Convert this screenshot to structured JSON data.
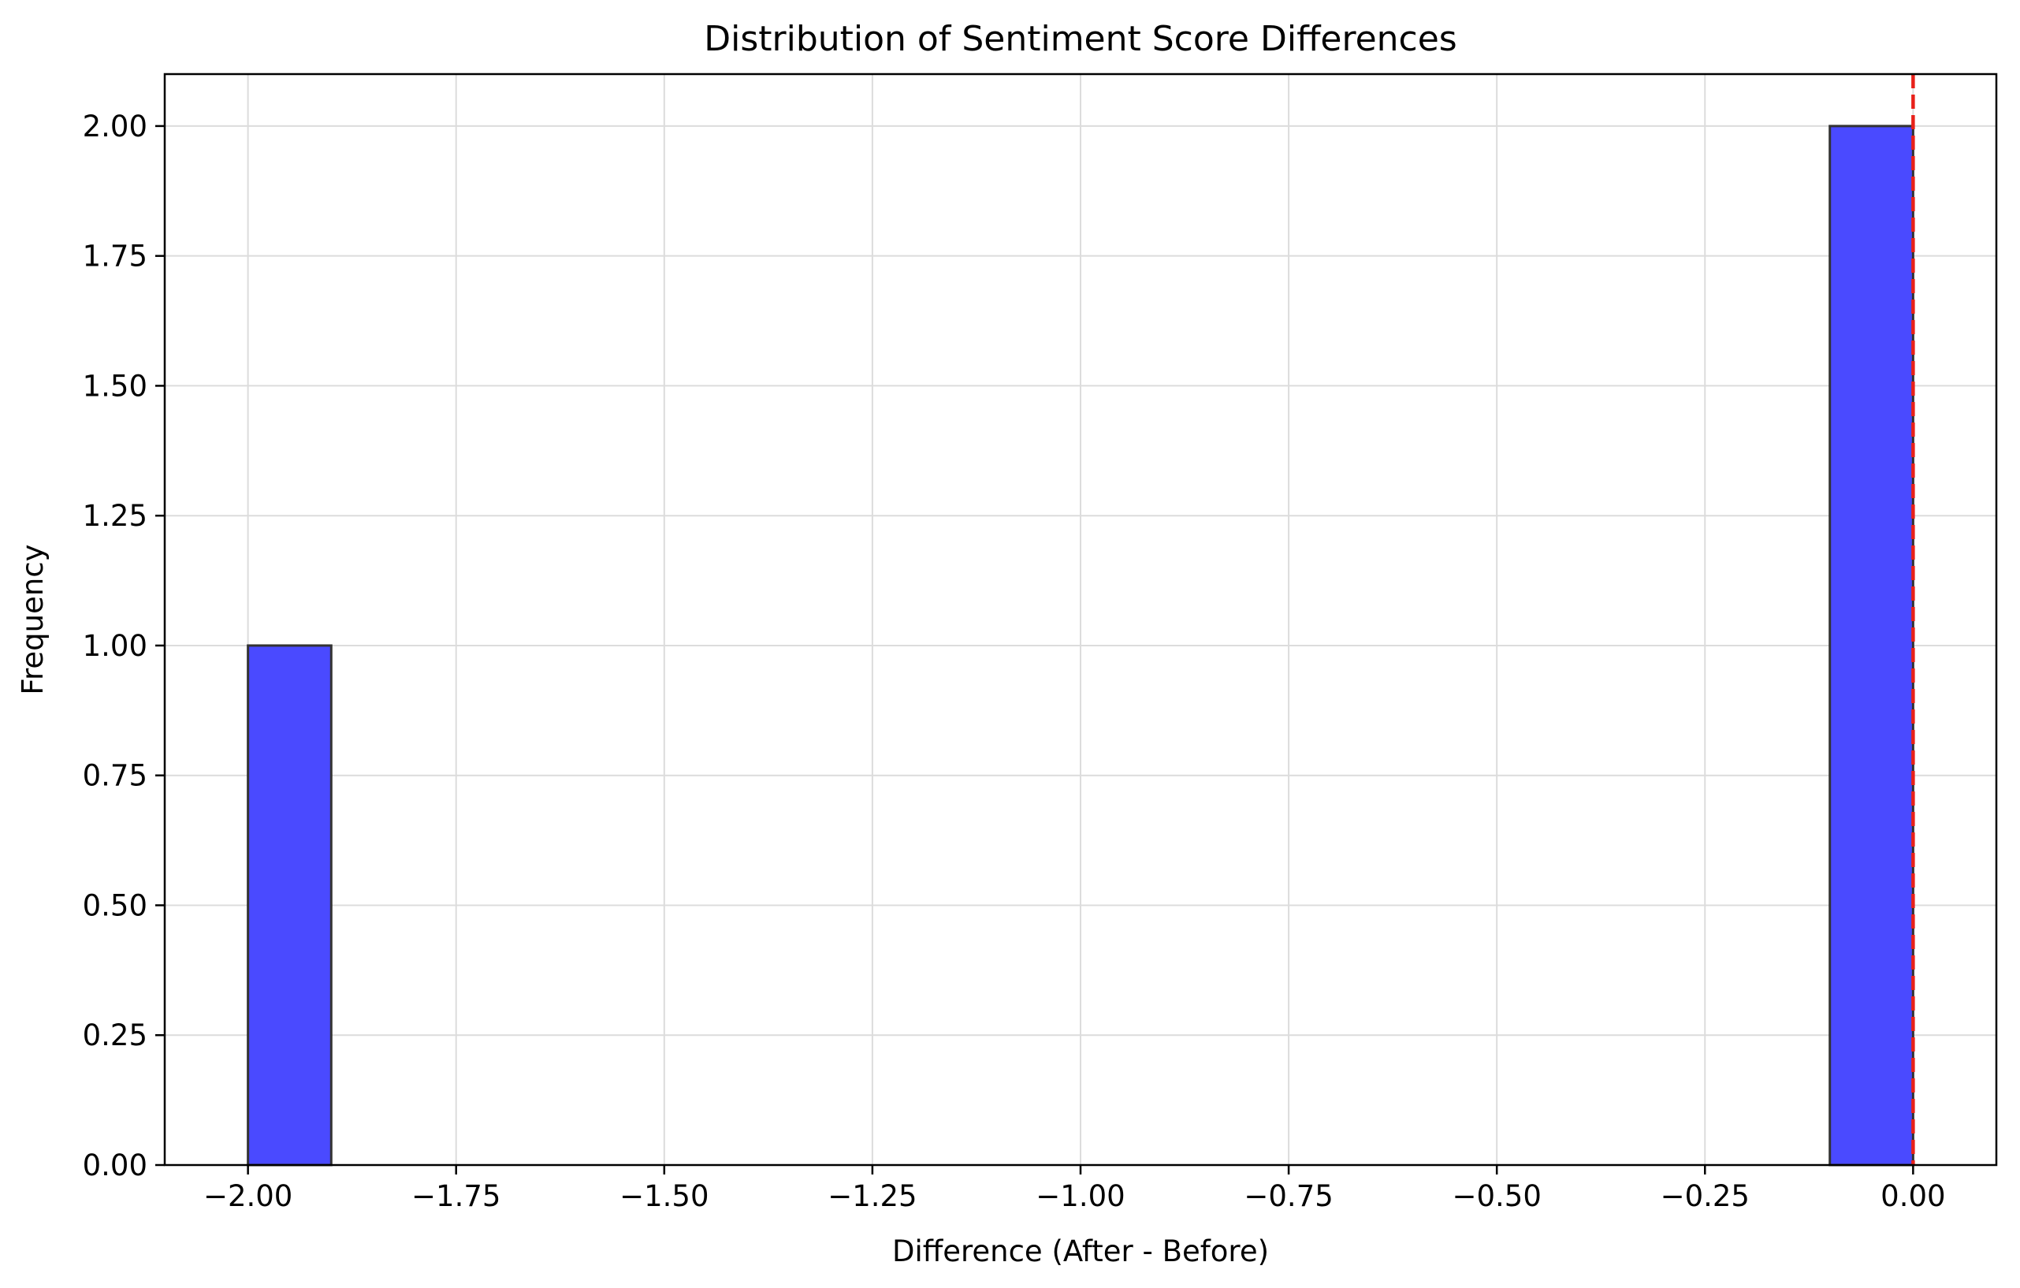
{
  "chart_data": {
    "type": "bar",
    "title": "Distribution of Sentiment Score Differences",
    "xlabel": "Difference (After - Before)",
    "ylabel": "Frequency",
    "xlim": [
      -2.1,
      0.1
    ],
    "ylim": [
      0,
      2.1
    ],
    "x_ticks": [
      -2.0,
      -1.75,
      -1.5,
      -1.25,
      -1.0,
      -0.75,
      -0.5,
      -0.25,
      0.0
    ],
    "x_tick_labels": [
      "−2.00",
      "−1.75",
      "−1.50",
      "−1.25",
      "−1.00",
      "−0.75",
      "−0.50",
      "−0.25",
      "0.00"
    ],
    "y_ticks": [
      0,
      0.25,
      0.5,
      0.75,
      1.0,
      1.25,
      1.5,
      1.75,
      2.0
    ],
    "y_tick_labels": [
      "0.00",
      "0.25",
      "0.50",
      "0.75",
      "1.00",
      "1.25",
      "1.50",
      "1.75",
      "2.00"
    ],
    "bins": [
      {
        "x0": -2.0,
        "x1": -1.9,
        "value": 1
      },
      {
        "x0": -0.1,
        "x1": 0.0,
        "value": 2
      }
    ],
    "reference_line": {
      "x": 0.0,
      "style": "dashed",
      "color": "#e8211a"
    },
    "bar_color": "#4a4aff",
    "bar_edge_color": "#333333",
    "grid": true
  }
}
